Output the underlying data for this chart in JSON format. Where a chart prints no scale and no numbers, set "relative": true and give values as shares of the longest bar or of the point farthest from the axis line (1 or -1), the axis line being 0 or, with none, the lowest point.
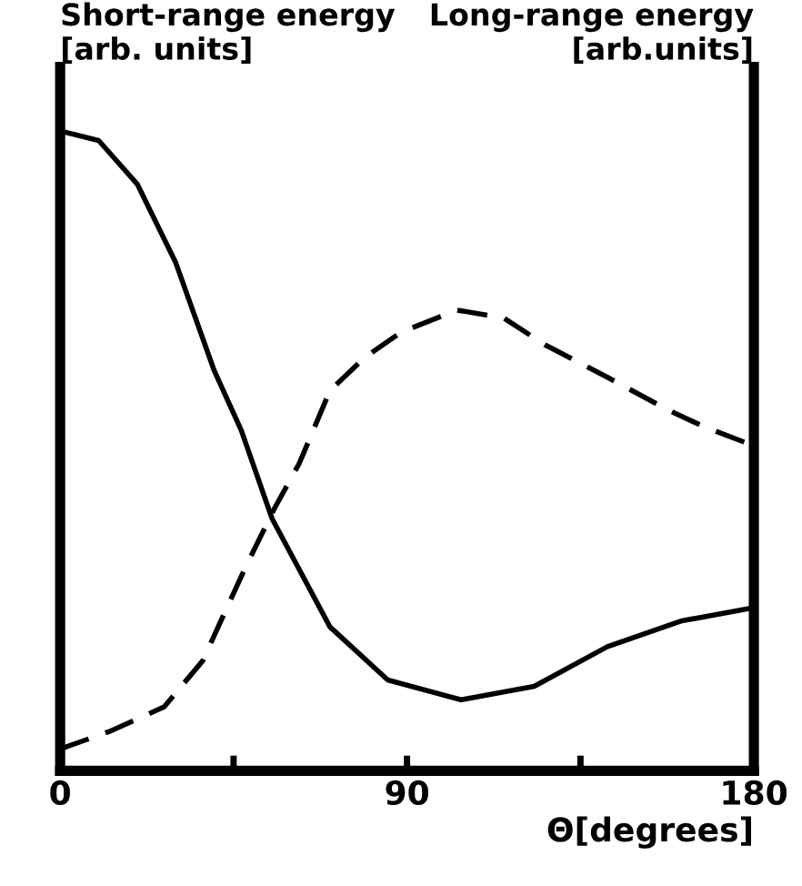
{
  "chart_data": {
    "type": "line",
    "relative": true,
    "ylabel": "Short-range energy\n[arb. units]",
    "y2label": "Long-range energy\n[arb.units]",
    "xlabel": "Θ[degrees]",
    "xlim": [
      0,
      180
    ],
    "xticks": [
      0,
      {
        "value": 45,
        "label": null
      },
      90,
      {
        "value": 135,
        "label": null
      },
      180
    ],
    "grid": false,
    "legend": false,
    "tick_labels": "x",
    "marker": "none",
    "series": [
      {
        "color": "#000000",
        "line_style": "solid",
        "x": [
          0,
          10,
          20,
          30,
          40,
          47,
          55,
          70,
          85,
          104,
          123,
          142,
          161,
          180
        ],
        "values": [
          1.0,
          0.985,
          0.917,
          0.794,
          0.625,
          0.532,
          0.394,
          0.225,
          0.142,
          0.111,
          0.132,
          0.194,
          0.234,
          0.255
        ]
      },
      {
        "color": "#000000",
        "line_style": "dashed",
        "x": [
          0,
          13,
          27,
          37,
          41,
          48,
          55.6,
          62,
          70,
          79,
          88.6,
          103,
          115,
          126,
          142,
          158,
          167,
          180
        ],
        "values": [
          0.034,
          0.062,
          0.1,
          0.172,
          0.225,
          0.317,
          0.41,
          0.48,
          0.594,
          0.646,
          0.686,
          0.72,
          0.708,
          0.665,
          0.615,
          0.563,
          0.538,
          0.508
        ]
      }
    ]
  }
}
